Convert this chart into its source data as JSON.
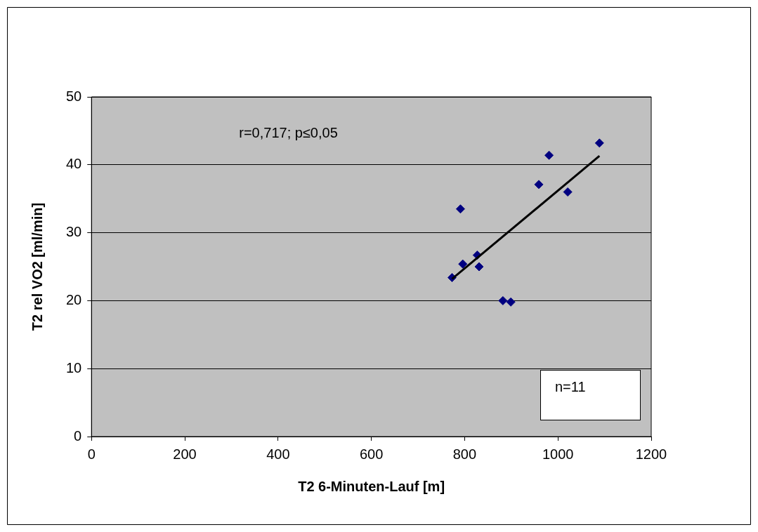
{
  "chart_data": {
    "type": "scatter",
    "xlabel": "T2 6-Minuten-Lauf [m]",
    "ylabel": "T2 rel VO2 [ml/min]",
    "annotations": [
      "r=0,717; p≤0,05",
      "n=11"
    ],
    "series": [
      {
        "color": "#000080",
        "marker": "diamond",
        "x": [
          773,
          791,
          796,
          827,
          831,
          882,
          899,
          959,
          981,
          1021,
          1089
        ],
        "values": [
          23.4,
          33.5,
          25.4,
          26.7,
          25.0,
          20.0,
          19.8,
          37.1,
          41.4,
          36.0,
          43.2
        ]
      },
      {
        "type": "line",
        "color": "#000000",
        "marker": "none",
        "x": [
          773,
          1089
        ],
        "values": [
          23.2,
          41.3
        ]
      }
    ],
    "xlim": [
      0,
      1200
    ],
    "xticks": [
      0,
      200,
      400,
      600,
      800,
      1000,
      1200
    ],
    "ylim": [
      0,
      50
    ],
    "yticks": [
      0,
      10,
      20,
      30,
      40,
      50
    ],
    "grid": "y",
    "legend": false
  }
}
